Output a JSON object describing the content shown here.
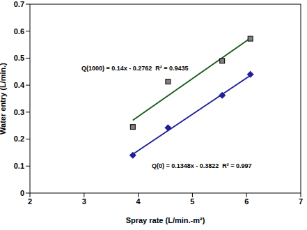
{
  "chart_data": {
    "type": "scatter",
    "xlabel": "Spray rate (L/min.-m²)",
    "ylabel": "Water entry  (L/min.)",
    "xlim": [
      2,
      7
    ],
    "xticks": [
      2,
      3,
      4,
      5,
      6,
      7
    ],
    "ylim": [
      0,
      0.7
    ],
    "yticks": [
      0,
      0.1,
      0.2,
      0.3,
      0.4,
      0.5,
      0.6,
      0.7
    ],
    "grid": false,
    "series": [
      {
        "color": "#1a5c1a",
        "marker": "square",
        "x": [
          3.9,
          4.55,
          5.55,
          6.07
        ],
        "values": [
          0.245,
          0.413,
          0.49,
          0.572
        ],
        "trendline": {
          "x": [
            3.9,
            6.07
          ],
          "values": [
            0.27,
            0.574
          ]
        }
      },
      {
        "color": "#1f1f99",
        "marker": "diamond",
        "x": [
          3.9,
          4.55,
          5.55,
          6.07
        ],
        "values": [
          0.14,
          0.242,
          0.362,
          0.44
        ],
        "trendline": {
          "x": [
            3.9,
            6.07
          ],
          "values": [
            0.144,
            0.436
          ]
        }
      }
    ],
    "annotations": [
      "Q(1000) = 0.14x - 0.2762  R² = 0.9435",
      "Q(0) = 0.1348x - 0.3822  R² = 0.997"
    ]
  }
}
